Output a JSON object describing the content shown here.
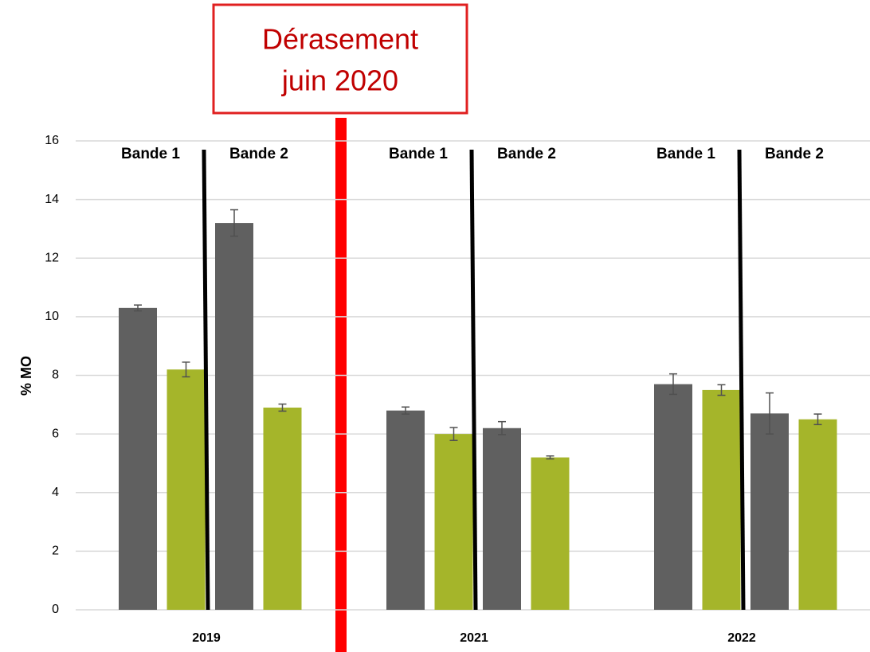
{
  "chart_data": {
    "type": "bar",
    "ylabel": "% MO",
    "annotation": [
      "Dérasement",
      "juin 2020"
    ],
    "band_labels": [
      "Bande 1",
      "Bande 2"
    ],
    "categories": [
      "2019",
      "2021",
      "2022"
    ],
    "series": [
      {
        "color": "#606060",
        "values": [
          10.3,
          6.8,
          7.7
        ],
        "errors": [
          0.1,
          0.12,
          0.35
        ]
      },
      {
        "color": "#a5b52a",
        "values": [
          8.2,
          6.0,
          7.5
        ],
        "errors": [
          0.25,
          0.22,
          0.18
        ]
      },
      {
        "color": "#606060",
        "values": [
          13.2,
          6.2,
          6.7
        ],
        "errors": [
          0.45,
          0.22,
          0.7
        ]
      },
      {
        "color": "#a5b52a",
        "values": [
          6.9,
          5.2,
          6.5
        ],
        "errors": [
          0.12,
          0.05,
          0.18
        ]
      }
    ],
    "ylim": [
      0,
      16
    ],
    "yticks": [
      0,
      2,
      4,
      6,
      8,
      10,
      12,
      14,
      16
    ],
    "grid": true
  }
}
